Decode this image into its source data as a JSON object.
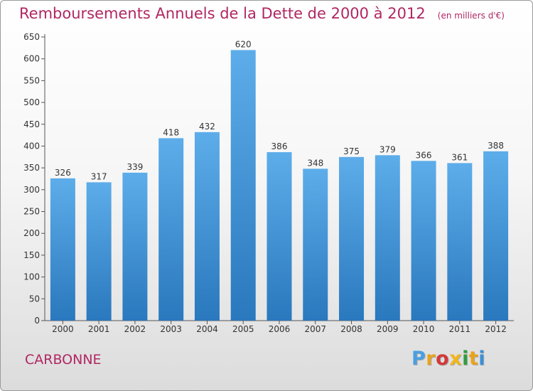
{
  "chart": {
    "title": "Remboursements Annuels de la Dette de 2000 à 2012",
    "unit": "(en milliers d'€)"
  },
  "commune": "CARBONNE",
  "logo": {
    "text": "Proxiti",
    "colors": [
      "#4a9fe0",
      "#e8a31c",
      "#d23a3a",
      "#f2b51b",
      "#2f9e3c",
      "#e8a31c",
      "#3a8fd8"
    ]
  },
  "colors": {
    "bar_light": "#5dadea",
    "bar_dark": "#2a78bd",
    "title": "#b02763"
  },
  "chart_data": {
    "type": "bar",
    "title": "Remboursements Annuels de la Dette de 2000 à 2012",
    "subtitle": "(en milliers d'€)",
    "categories": [
      "2000",
      "2001",
      "2002",
      "2003",
      "2004",
      "2005",
      "2006",
      "2007",
      "2008",
      "2009",
      "2010",
      "2011",
      "2012"
    ],
    "values": [
      326,
      317,
      339,
      418,
      432,
      620,
      386,
      348,
      375,
      379,
      366,
      361,
      388
    ],
    "ylim": [
      0,
      650
    ],
    "yticks": [
      0,
      50,
      100,
      150,
      200,
      250,
      300,
      350,
      400,
      450,
      500,
      550,
      600,
      650
    ],
    "grid": false,
    "xlabel": "",
    "ylabel": ""
  }
}
